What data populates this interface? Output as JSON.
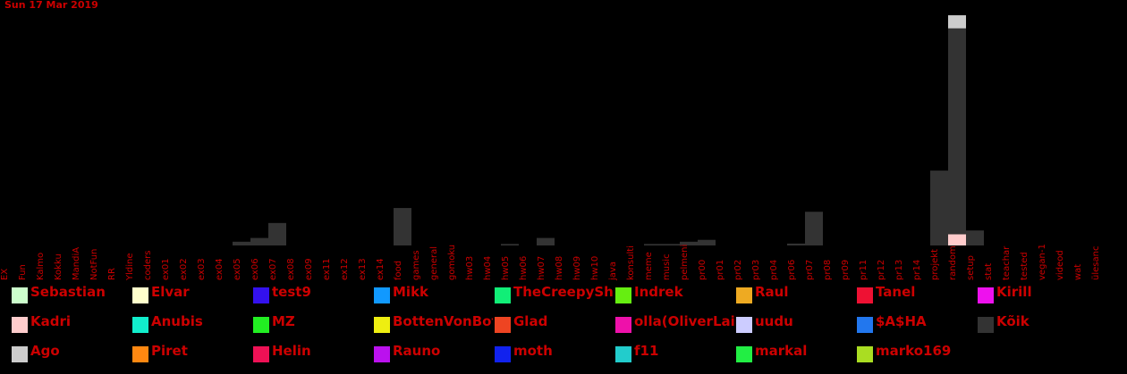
{
  "date_label": "Sun 17 Mar 2019",
  "chart_data": {
    "type": "bar",
    "stacked": true,
    "categories": [
      "EX",
      "Fun",
      "Kalmo",
      "Kokku",
      "MandiA",
      "NotFun",
      "RR",
      "Yldine",
      "coders",
      "ex01",
      "ex02",
      "ex03",
      "ex04",
      "ex05",
      "ex06",
      "ex07",
      "ex08",
      "ex09",
      "ex11",
      "ex12",
      "ex13",
      "ex14",
      "food",
      "games",
      "general",
      "gomoku",
      "hw03",
      "hw04",
      "hw05",
      "hw06",
      "hw07",
      "hw08",
      "hw09",
      "hw10",
      "java",
      "konsulti",
      "meme",
      "music",
      "pelmeni",
      "pr00",
      "pr01",
      "pr02",
      "pr03",
      "pr04",
      "pr06",
      "pr07",
      "pr08",
      "pr09",
      "pr11",
      "pr12",
      "pr13",
      "pr14",
      "projekt",
      "random",
      "setup",
      "stat",
      "teachar",
      "tested",
      "vegan-1",
      "videod",
      "wat",
      "ülesanc"
    ],
    "series": [
      {
        "name": "Sebastian",
        "color": "#ccffcc",
        "values": {}
      },
      {
        "name": "Elvar",
        "color": "#ffffcc",
        "values": {}
      },
      {
        "name": "test9",
        "color": "#3311ee",
        "values": {}
      },
      {
        "name": "Mikk",
        "color": "#1199ff",
        "values": {}
      },
      {
        "name": "TheCreepySheep",
        "color": "#11ee77",
        "values": {}
      },
      {
        "name": "Indrek",
        "color": "#66ee11",
        "values": {}
      },
      {
        "name": "Raul",
        "color": "#eeaa22",
        "values": {}
      },
      {
        "name": "Tanel",
        "color": "#ee1133",
        "values": {}
      },
      {
        "name": "Kirill",
        "color": "#ee11ee",
        "values": {}
      },
      {
        "name": "Kadri",
        "color": "#ffcccc",
        "values": {
          "random": 3
        }
      },
      {
        "name": "Anubis",
        "color": "#11eecc",
        "values": {}
      },
      {
        "name": "MZ",
        "color": "#22ee22",
        "values": {}
      },
      {
        "name": "BottenVonBot",
        "color": "#eeee11",
        "values": {}
      },
      {
        "name": "Glad",
        "color": "#ee4422",
        "values": {}
      },
      {
        "name": "olla(OliverLaidroo)",
        "color": "#ee11aa",
        "values": {}
      },
      {
        "name": "uudu",
        "color": "#ccccff",
        "values": {}
      },
      {
        "name": "$A$HA",
        "color": "#2277ee",
        "values": {}
      },
      {
        "name": "Kõik",
        "color": "#333333",
        "values": {
          "ex05": 1,
          "ex06": 2,
          "ex07": 6,
          "food": 10,
          "hw05": 0.4,
          "hw07": 2,
          "meme": 0.4,
          "music": 0.4,
          "pelmeni": 1,
          "pr00": 1.5,
          "pr06": 0.5,
          "pr07": 9,
          "projekt": 20,
          "random": 55,
          "setup": 4
        }
      },
      {
        "name": "Ago",
        "color": "#cccccc",
        "values": {
          "random": 3.5
        }
      },
      {
        "name": "Piret",
        "color": "#ff8811",
        "values": {}
      },
      {
        "name": "Helin",
        "color": "#ee1155",
        "values": {}
      },
      {
        "name": "Rauno",
        "color": "#bb11ee",
        "values": {}
      },
      {
        "name": "moth",
        "color": "#1122ee",
        "values": {}
      },
      {
        "name": "f11",
        "color": "#22cccc",
        "values": {}
      },
      {
        "name": "markal",
        "color": "#22ee44",
        "values": {}
      },
      {
        "name": "marko169",
        "color": "#aadd22",
        "values": {}
      }
    ],
    "ylim": [
      0,
      62
    ],
    "grid": false,
    "legend_position": "bottom"
  }
}
